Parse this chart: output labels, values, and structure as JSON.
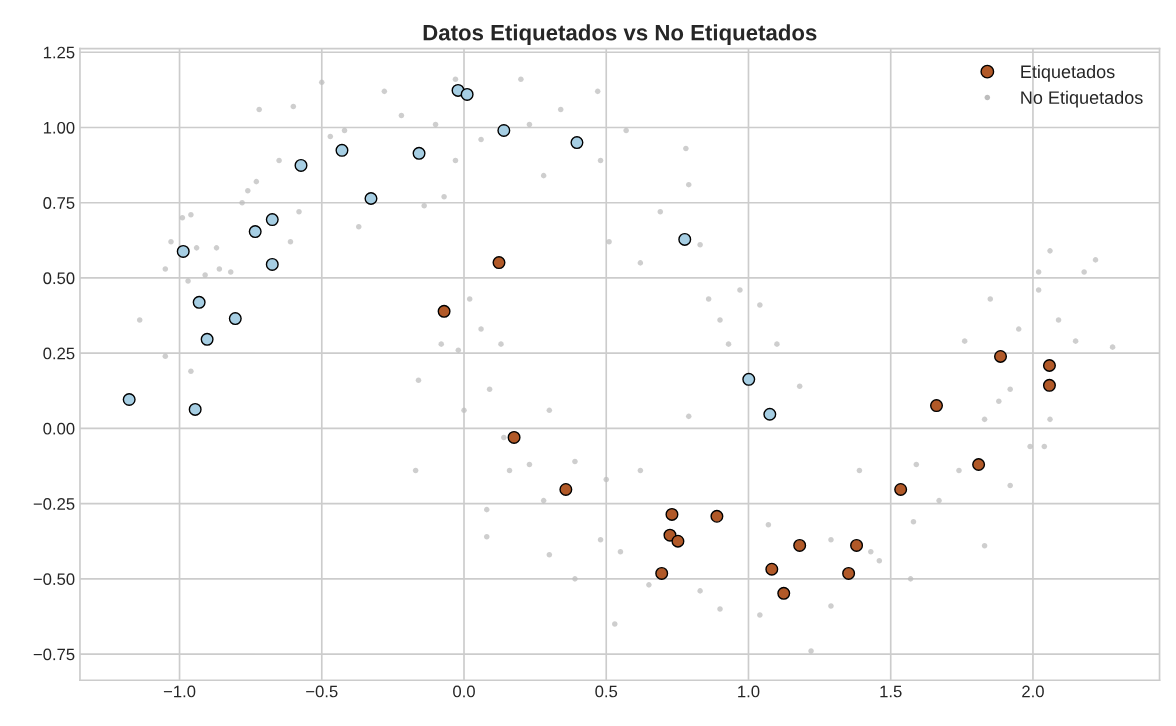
{
  "chart_data": {
    "type": "scatter",
    "title": "Datos Etiquetados vs No Etiquetados",
    "xlim": [
      -1.35,
      2.445
    ],
    "ylim": [
      -0.837,
      1.262
    ],
    "xticks": [
      {
        "value": -1.0,
        "label": "−1.0"
      },
      {
        "value": -0.5,
        "label": "−0.5"
      },
      {
        "value": 0.0,
        "label": "0.0"
      },
      {
        "value": 0.5,
        "label": "0.5"
      },
      {
        "value": 1.0,
        "label": "1.0"
      },
      {
        "value": 1.5,
        "label": "1.5"
      },
      {
        "value": 2.0,
        "label": "2.0"
      }
    ],
    "yticks": [
      {
        "value": -0.75,
        "label": "−0.75"
      },
      {
        "value": -0.5,
        "label": "−0.50"
      },
      {
        "value": -0.25,
        "label": "−0.25"
      },
      {
        "value": 0.0,
        "label": "0.00"
      },
      {
        "value": 0.25,
        "label": "0.25"
      },
      {
        "value": 0.5,
        "label": "0.50"
      },
      {
        "value": 0.75,
        "label": "0.75"
      },
      {
        "value": 1.0,
        "label": "1.00"
      },
      {
        "value": 1.25,
        "label": "1.25"
      }
    ],
    "grid": true,
    "legend": "top right",
    "marker": "circle",
    "series": [
      {
        "name": "Etiquetados",
        "color": "#b15928",
        "x": [
          -1.177,
          -0.987,
          -0.931,
          -0.903,
          -0.945,
          -0.804,
          -0.734,
          -0.674,
          -0.674,
          -0.573,
          -0.429,
          -0.327,
          -0.158,
          -0.021,
          0.011,
          0.14,
          0.397,
          0.776,
          1.001,
          1.075,
          -0.07,
          0.123,
          0.176,
          0.358,
          0.731,
          0.724,
          0.752,
          0.695,
          0.889,
          1.082,
          1.124,
          1.18,
          1.352,
          1.38,
          1.535,
          1.661,
          1.809,
          1.886,
          2.058,
          2.058
        ],
        "values": [
          0.096,
          0.588,
          0.419,
          0.296,
          0.063,
          0.365,
          0.654,
          0.694,
          0.545,
          0.874,
          0.924,
          0.764,
          0.914,
          1.123,
          1.11,
          0.99,
          0.95,
          0.628,
          0.163,
          0.047,
          0.389,
          0.551,
          -0.03,
          -0.203,
          -0.286,
          -0.355,
          -0.375,
          -0.482,
          -0.292,
          -0.468,
          -0.548,
          -0.389,
          -0.482,
          -0.389,
          -0.203,
          0.076,
          -0.12,
          0.239,
          0.209,
          0.143
        ],
        "colors": [
          "#a6cee3",
          "#a6cee3",
          "#a6cee3",
          "#a6cee3",
          "#a6cee3",
          "#a6cee3",
          "#a6cee3",
          "#a6cee3",
          "#a6cee3",
          "#a6cee3",
          "#a6cee3",
          "#a6cee3",
          "#a6cee3",
          "#a6cee3",
          "#a6cee3",
          "#a6cee3",
          "#a6cee3",
          "#a6cee3",
          "#a6cee3",
          "#a6cee3",
          "#b15928",
          "#b15928",
          "#b15928",
          "#b15928",
          "#b15928",
          "#b15928",
          "#b15928",
          "#b15928",
          "#b15928",
          "#b15928",
          "#b15928",
          "#b15928",
          "#b15928",
          "#b15928",
          "#b15928",
          "#b15928",
          "#b15928",
          "#b15928",
          "#b15928",
          "#b15928"
        ]
      },
      {
        "name": "No Etiquetados",
        "color": "#bdbdbd",
        "x": [
          -1.14,
          -1.05,
          -1.05,
          -1.03,
          -0.99,
          -0.96,
          -0.94,
          -0.97,
          -0.96,
          -0.91,
          -0.87,
          -0.86,
          -0.82,
          -0.78,
          -0.76,
          -0.73,
          -0.72,
          -0.65,
          -0.6,
          -0.61,
          -0.58,
          -0.5,
          -0.47,
          -0.42,
          -0.37,
          -0.28,
          -0.22,
          -0.14,
          -0.1,
          -0.07,
          -0.03,
          -0.03,
          0.06,
          0.2,
          0.23,
          0.28,
          0.34,
          0.47,
          0.48,
          0.57,
          0.51,
          0.62,
          0.69,
          0.78,
          0.79,
          0.83,
          0.86,
          0.9,
          0.93,
          0.97,
          1.04,
          1.1,
          1.18,
          0.79,
          0.62,
          0.55,
          0.48,
          0.39,
          0.53,
          0.65,
          0.83,
          0.9,
          1.04,
          1.22,
          1.29,
          1.46,
          1.57,
          1.67,
          1.74,
          1.83,
          1.88,
          1.95,
          2.02,
          2.09,
          2.18,
          2.22,
          2.28,
          2.15,
          1.99,
          1.83,
          1.59,
          0.02,
          0.06,
          0.13,
          0.09,
          0.0,
          -0.02,
          -0.16,
          -0.17,
          0.08,
          0.08,
          0.23,
          0.28,
          0.3,
          0.16,
          0.14,
          -0.08,
          0.39,
          0.5,
          0.3,
          1.07,
          1.29,
          1.39,
          1.92,
          2.04,
          2.06,
          1.92,
          1.76,
          1.85,
          2.06,
          2.02,
          1.58,
          1.43
        ],
        "values": [
          0.36,
          0.53,
          0.24,
          0.62,
          0.7,
          0.71,
          0.6,
          0.49,
          0.19,
          0.51,
          0.6,
          0.53,
          0.52,
          0.75,
          0.79,
          0.82,
          1.06,
          0.89,
          1.07,
          0.62,
          0.72,
          1.15,
          0.97,
          0.99,
          0.67,
          1.12,
          1.04,
          0.74,
          1.01,
          0.77,
          1.16,
          0.89,
          0.96,
          1.16,
          1.01,
          0.84,
          1.06,
          1.12,
          0.89,
          0.99,
          0.62,
          0.55,
          0.72,
          0.93,
          0.81,
          0.61,
          0.43,
          0.36,
          0.28,
          0.46,
          0.41,
          0.28,
          0.14,
          0.04,
          -0.14,
          -0.41,
          -0.37,
          -0.5,
          -0.65,
          -0.52,
          -0.54,
          -0.6,
          -0.62,
          -0.74,
          -0.59,
          -0.44,
          -0.5,
          -0.24,
          -0.14,
          0.03,
          0.09,
          0.33,
          0.46,
          0.36,
          0.52,
          0.56,
          0.27,
          0.29,
          -0.06,
          -0.39,
          -0.12,
          0.43,
          0.33,
          0.28,
          0.13,
          0.06,
          0.26,
          0.16,
          -0.14,
          -0.27,
          -0.36,
          -0.12,
          -0.24,
          -0.42,
          -0.14,
          -0.03,
          0.28,
          -0.11,
          -0.17,
          0.06,
          -0.32,
          -0.37,
          -0.14,
          -0.19,
          -0.06,
          0.03,
          0.13,
          0.29,
          0.43,
          0.59,
          0.52,
          -0.31,
          -0.41
        ]
      }
    ]
  }
}
